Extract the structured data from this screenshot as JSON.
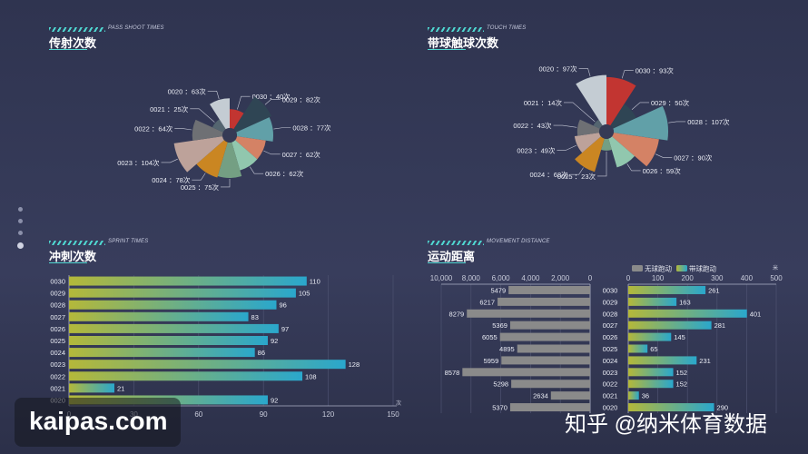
{
  "panels": {
    "shoot": {
      "subtitle": "PASS SHOOT TIMES",
      "title": "传射次数"
    },
    "touch": {
      "subtitle": "TOUCH TIMES",
      "title": "带球触球次数"
    },
    "sprint": {
      "subtitle": "SPRINT TIMES",
      "title": "冲刺次数"
    },
    "movement": {
      "subtitle": "MOVEMENT DISTANCE",
      "title": "运动距离"
    }
  },
  "watermarks": {
    "left": "kaipas.com",
    "right": "知乎 @纳米体育数据"
  },
  "chart_data": [
    {
      "id": "shoot",
      "type": "pie",
      "variant": "rose",
      "unit": "次",
      "categories": [
        "0030",
        "0029",
        "0028",
        "0027",
        "0026",
        "0025",
        "0024",
        "0023",
        "0022",
        "0021",
        "0020"
      ],
      "values": [
        40,
        82,
        77,
        62,
        62,
        75,
        78,
        104,
        64,
        25,
        63
      ],
      "colors": [
        "#c23531",
        "#2f4554",
        "#61a0a8",
        "#d48265",
        "#91c7ae",
        "#749f83",
        "#ca8622",
        "#bda29a",
        "#6e7074",
        "#546570",
        "#c4ccd3"
      ]
    },
    {
      "id": "touch",
      "type": "pie",
      "variant": "rose",
      "unit": "次",
      "categories": [
        "0030",
        "0029",
        "0028",
        "0027",
        "0026",
        "0025",
        "0024",
        "0023",
        "0022",
        "0021",
        "0020"
      ],
      "values": [
        93,
        50,
        107,
        90,
        59,
        23,
        68,
        49,
        43,
        14,
        97
      ],
      "colors": [
        "#c23531",
        "#2f4554",
        "#61a0a8",
        "#d48265",
        "#91c7ae",
        "#749f83",
        "#ca8622",
        "#bda29a",
        "#6e7074",
        "#546570",
        "#c4ccd3"
      ]
    },
    {
      "id": "sprint",
      "type": "bar",
      "orientation": "horizontal",
      "categories": [
        "0030",
        "0029",
        "0028",
        "0027",
        "0026",
        "0025",
        "0024",
        "0023",
        "0022",
        "0021",
        "0020"
      ],
      "values": [
        110,
        105,
        96,
        83,
        97,
        92,
        86,
        128,
        108,
        21,
        92
      ],
      "xlim": [
        0,
        150
      ],
      "xticks": [
        0,
        30,
        60,
        90,
        120,
        150
      ],
      "xunit": "次",
      "gradient": [
        "#b4b83a",
        "#2aa7cc"
      ]
    },
    {
      "id": "movement",
      "type": "bar",
      "orientation": "horizontal",
      "categories": [
        "0030",
        "0029",
        "0028",
        "0027",
        "0026",
        "0025",
        "0024",
        "0023",
        "0022",
        "0021",
        "0020"
      ],
      "series": [
        {
          "name": "无球跑动",
          "values": [
            5479,
            6217,
            8279,
            5369,
            6055,
            4895,
            5959,
            8578,
            5298,
            2634,
            5370
          ],
          "xlim": [
            0,
            10000
          ],
          "xticks": [
            10000,
            8000,
            6000,
            4000,
            2000,
            0
          ],
          "color": "#8a8a8a"
        },
        {
          "name": "带球跑动",
          "values": [
            261,
            163,
            401,
            281,
            145,
            65,
            231,
            152,
            152,
            36,
            290
          ],
          "xlim": [
            0,
            500
          ],
          "xticks": [
            0,
            100,
            200,
            300,
            400,
            500
          ],
          "xunit": "米",
          "gradient": [
            "#b4b83a",
            "#2aa7cc"
          ]
        }
      ],
      "legend_position": "top"
    }
  ]
}
